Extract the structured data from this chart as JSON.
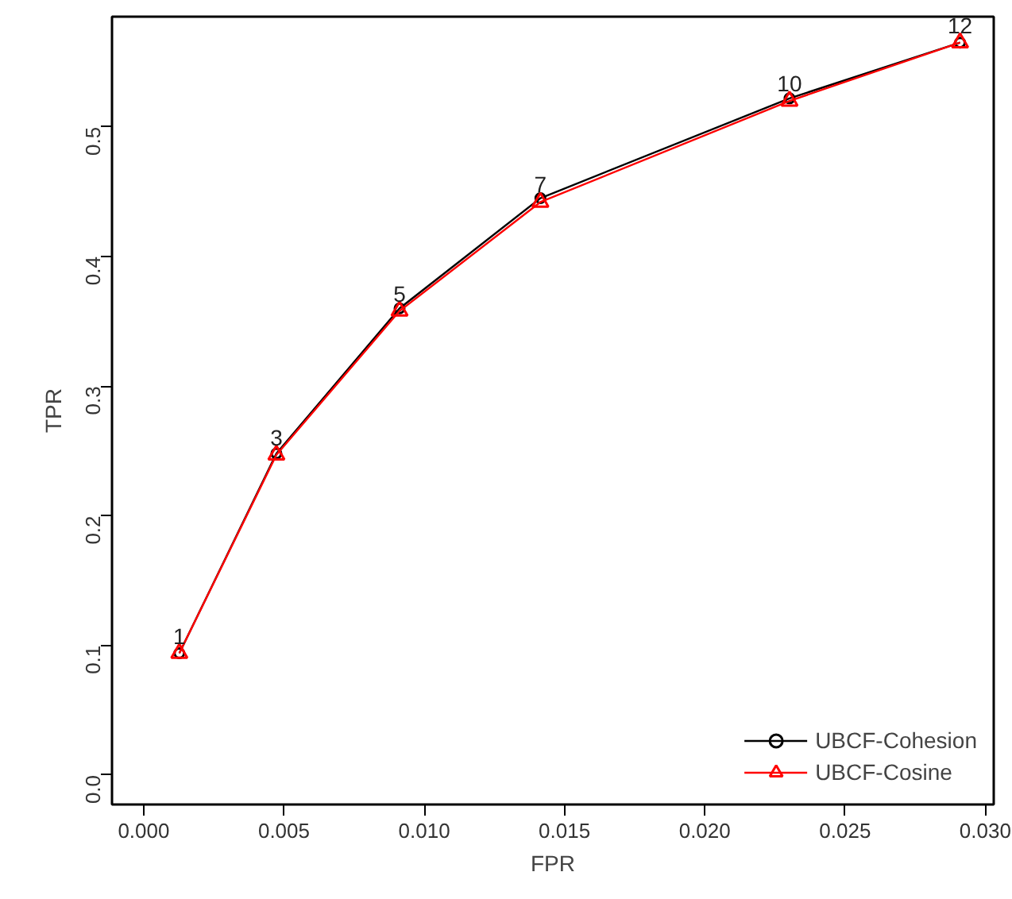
{
  "chart_data": {
    "type": "line",
    "xlabel": "FPR",
    "ylabel": "TPR",
    "x": [
      0.00127,
      0.00473,
      0.00912,
      0.01414,
      0.02302,
      0.0291
    ],
    "series": [
      {
        "name": "UBCF-Cohesion",
        "color": "#000000",
        "marker": "circle",
        "values": [
          0.094,
          0.248,
          0.36,
          0.445,
          0.522,
          0.565
        ]
      },
      {
        "name": "UBCF-Cosine",
        "color": "#ff0000",
        "marker": "triangle",
        "values": [
          0.094,
          0.247,
          0.358,
          0.442,
          0.52,
          0.565
        ]
      }
    ],
    "annotations": [
      {
        "text": "1",
        "x": 0.00127,
        "y": 0.094
      },
      {
        "text": "3",
        "x": 0.00473,
        "y": 0.247
      },
      {
        "text": "5",
        "x": 0.00912,
        "y": 0.358
      },
      {
        "text": "7",
        "x": 0.01414,
        "y": 0.442
      },
      {
        "text": "10",
        "x": 0.02302,
        "y": 0.52
      },
      {
        "text": "12",
        "x": 0.0291,
        "y": 0.565
      }
    ],
    "xlim": [
      -0.00113,
      0.0303
    ],
    "ylim": [
      -0.0227,
      0.585
    ],
    "xticks": [
      {
        "value": 0,
        "label": "0.000"
      },
      {
        "value": 0.005,
        "label": "0.005"
      },
      {
        "value": 0.01,
        "label": "0.010"
      },
      {
        "value": 0.015,
        "label": "0.015"
      },
      {
        "value": 0.02,
        "label": "0.020"
      },
      {
        "value": 0.025,
        "label": "0.025"
      },
      {
        "value": 0.03,
        "label": "0.030"
      }
    ],
    "yticks": [
      {
        "value": 0,
        "label": "0.0"
      },
      0.1,
      0.2,
      0.3,
      0.4,
      0.5
    ],
    "grid": false,
    "legend": "bottom right",
    "line_style": "solid"
  }
}
